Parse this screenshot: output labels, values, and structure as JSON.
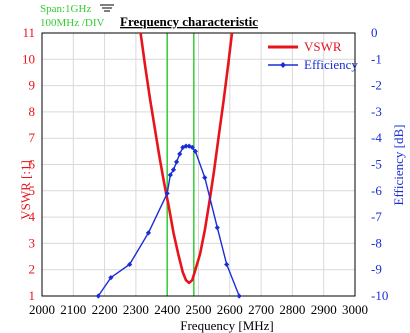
{
  "chart_data": {
    "type": "line",
    "title": "Frequency characteristic",
    "span_label": "Span:1GHz",
    "div_label": "100MHz /DIV",
    "xlabel": "Frequency [MHz]",
    "ylabel_left": "VSWR [:1]",
    "ylabel_right": "Efficiency [dB]",
    "x_ticks": [
      2000,
      2100,
      2200,
      2300,
      2400,
      2500,
      2600,
      2700,
      2800,
      2900,
      3000
    ],
    "x_tick_labels": [
      "2000",
      "2100",
      "2200",
      "2300",
      "2400",
      "2500",
      "2600",
      "2700",
      "2800",
      "2900",
      "3000"
    ],
    "y_left_ticks": [
      1,
      2,
      3,
      4,
      5,
      6,
      7,
      8,
      9,
      10,
      11
    ],
    "y_left_tick_labels": [
      "1",
      "2",
      "3",
      "4",
      "5",
      "6",
      "7",
      "8",
      "9",
      "10",
      "11"
    ],
    "y_right_ticks": [
      0,
      -1,
      -2,
      -3,
      -4,
      -5,
      -6,
      -7,
      -8,
      -9,
      -10
    ],
    "y_right_tick_labels": [
      "0",
      "-1",
      "-2",
      "-3",
      "-4",
      "-5",
      "-6",
      "-7",
      "-8",
      "-9",
      "-10"
    ],
    "xlim": [
      2000,
      3000
    ],
    "ylim_left": [
      1,
      11
    ],
    "ylim_right": [
      -10,
      0
    ],
    "grid": true,
    "legend_position": "top-right",
    "markers_x": [
      2400,
      2485
    ],
    "series": [
      {
        "name": "VSWR",
        "axis": "left",
        "color": "#e8141c",
        "marker": "none",
        "x": [
          2315,
          2330,
          2345,
          2360,
          2375,
          2390,
          2405,
          2420,
          2435,
          2450,
          2460,
          2470,
          2480,
          2490,
          2505,
          2520,
          2535,
          2550,
          2565,
          2580,
          2595,
          2607
        ],
        "y": [
          11.0,
          9.7,
          8.5,
          7.4,
          6.3,
          5.3,
          4.4,
          3.4,
          2.6,
          1.9,
          1.6,
          1.5,
          1.6,
          2.0,
          2.6,
          3.5,
          4.6,
          5.8,
          7.1,
          8.4,
          9.8,
          11.0
        ]
      },
      {
        "name": "Efficiency",
        "axis": "right",
        "color": "#1a2ed6",
        "marker": "diamond",
        "x": [
          2180,
          2220,
          2280,
          2340,
          2400,
          2410,
          2420,
          2430,
          2440,
          2450,
          2460,
          2470,
          2480,
          2490,
          2520,
          2560,
          2590,
          2630
        ],
        "y": [
          -10.0,
          -9.3,
          -8.8,
          -7.6,
          -6.1,
          -5.4,
          -5.2,
          -4.9,
          -4.6,
          -4.35,
          -4.3,
          -4.3,
          -4.35,
          -4.5,
          -5.5,
          -7.4,
          -8.8,
          -10.0
        ]
      }
    ]
  }
}
